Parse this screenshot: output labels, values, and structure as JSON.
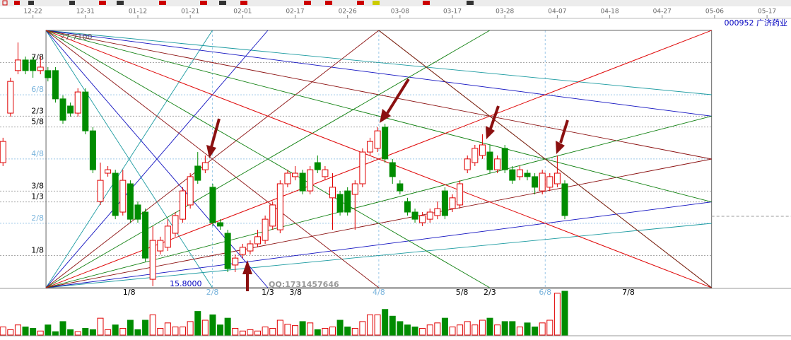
{
  "chart_data": {
    "type": "candlestick",
    "title": "000952 广济药业",
    "watermark": "QQ:1731457646",
    "xlim": [
      -0.4,
      105.2
    ],
    "xticks": [
      {
        "value": 4,
        "label": "12-22"
      },
      {
        "value": 11,
        "label": "12-31"
      },
      {
        "value": 18,
        "label": "01-12"
      },
      {
        "value": 25,
        "label": "01-21"
      },
      {
        "value": 32,
        "label": "02-01"
      },
      {
        "value": 39,
        "label": "02-17"
      },
      {
        "value": 46,
        "label": "02-26"
      },
      {
        "value": 53,
        "label": "03-08"
      },
      {
        "value": 60,
        "label": "03-17"
      },
      {
        "value": 67,
        "label": "03-28"
      },
      {
        "value": 74,
        "label": "04-07"
      },
      {
        "value": 81,
        "label": "04-18"
      },
      {
        "value": 88,
        "label": "04-27"
      },
      {
        "value": 95,
        "label": "05-06"
      },
      {
        "value": 102,
        "label": "05-17"
      }
    ],
    "ylim": [
      15.8,
      27.71
    ],
    "yticks": [
      {
        "value": 26.22,
        "label": "7/8"
      },
      {
        "value": 24.73,
        "label": "6/8"
      },
      {
        "value": 23.74,
        "label": "2/3"
      },
      {
        "value": 23.24,
        "label": "5/8"
      },
      {
        "value": 21.76,
        "label": "4/8"
      },
      {
        "value": 20.27,
        "label": "3/8"
      },
      {
        "value": 19.77,
        "label": "1/3"
      },
      {
        "value": 18.78,
        "label": "2/8"
      },
      {
        "value": 17.29,
        "label": "1/8"
      }
    ],
    "range_labels": [
      {
        "value": 27.71,
        "label": "27.7100"
      },
      {
        "value": 15.8,
        "label": "15.8000"
      }
    ],
    "gann_xlim": [
      5.74,
      94.6
    ],
    "time_fractions": [
      {
        "value": 0.125,
        "label": "1/8"
      },
      {
        "value": 0.25,
        "label": "2/8"
      },
      {
        "value": 0.3333,
        "label": "1/3"
      },
      {
        "value": 0.375,
        "label": "3/8"
      },
      {
        "value": 0.5,
        "label": "4/8"
      },
      {
        "value": 0.625,
        "label": "5/8"
      },
      {
        "value": 0.6667,
        "label": "2/3"
      },
      {
        "value": 0.75,
        "label": "6/8"
      },
      {
        "value": 0.875,
        "label": "7/8"
      }
    ],
    "up_color": "#e00000",
    "down_color": "#008c00",
    "open": [
      21.59,
      23.88,
      25.85,
      26.34,
      26.34,
      25.85,
      25.85,
      25.85,
      24.54,
      24.21,
      23.88,
      24.86,
      23.06,
      19.79,
      21.1,
      21.1,
      19.3,
      20.61,
      19.63,
      19.3,
      16.19,
      17.5,
      17.67,
      18.32,
      18.97,
      19.63,
      21.43,
      21.26,
      20.45,
      18.81,
      18.32,
      16.85,
      17.34,
      17.5,
      17.83,
      17.99,
      18.65,
      18.48,
      20.61,
      20.94,
      21.1,
      20.28,
      21.59,
      20.94,
      19.96,
      20.12,
      20.28,
      20.12,
      20.61,
      22.08,
      22.25,
      23.23,
      21.59,
      20.61,
      19.79,
      19.3,
      18.81,
      18.97,
      19.14,
      20.28,
      19.46,
      19.63,
      21.26,
      21.59,
      21.92,
      22.08,
      21.26,
      22.25,
      21.26,
      20.94,
      21.1,
      20.94,
      20.28,
      20.45,
      20.61,
      20.61
    ],
    "high": [
      22.74,
      25.52,
      27.15,
      26.5,
      26.5,
      26.5,
      26.01,
      26.01,
      24.7,
      24.37,
      25.03,
      25.03,
      23.23,
      21.59,
      21.43,
      21.26,
      21.26,
      20.77,
      19.79,
      19.46,
      18.65,
      18.16,
      18.97,
      19.3,
      20.45,
      21.1,
      22.08,
      21.92,
      20.61,
      18.97,
      18.48,
      17.34,
      17.83,
      17.99,
      18.48,
      19.14,
      19.79,
      20.77,
      21.26,
      21.43,
      21.26,
      21.43,
      21.92,
      21.43,
      21.1,
      20.28,
      20.45,
      20.77,
      22.25,
      22.74,
      23.23,
      23.39,
      21.76,
      20.77,
      19.96,
      19.46,
      19.3,
      19.46,
      19.79,
      20.45,
      20.12,
      20.77,
      21.92,
      22.41,
      22.9,
      22.41,
      21.92,
      22.41,
      21.43,
      21.43,
      21.26,
      21.1,
      21.26,
      21.1,
      21.92,
      20.77
    ],
    "low": [
      21.43,
      23.72,
      25.68,
      25.68,
      25.52,
      25.68,
      25.35,
      24.37,
      23.39,
      23.72,
      23.72,
      22.9,
      21.1,
      19.63,
      20.94,
      18.97,
      19.14,
      18.81,
      18.81,
      17.01,
      15.87,
      17.34,
      17.5,
      18.16,
      18.81,
      19.46,
      20.61,
      21.1,
      18.65,
      18.48,
      16.52,
      16.52,
      17.17,
      17.34,
      17.67,
      17.83,
      18.48,
      18.32,
      20.45,
      20.77,
      20.12,
      20.12,
      21.1,
      20.77,
      18.48,
      19.14,
      19.14,
      18.48,
      20.45,
      21.92,
      22.08,
      21.59,
      20.61,
      20.12,
      19.14,
      18.81,
      18.65,
      18.81,
      18.97,
      18.97,
      19.3,
      19.46,
      21.1,
      21.43,
      21.76,
      21.1,
      21.1,
      21.1,
      20.61,
      20.77,
      20.77,
      20.12,
      20.12,
      20.28,
      20.45,
      18.97
    ],
    "close": [
      22.57,
      25.35,
      26.34,
      25.85,
      25.85,
      26.01,
      25.52,
      24.54,
      23.55,
      23.88,
      24.86,
      23.06,
      21.26,
      20.77,
      21.26,
      19.14,
      20.77,
      18.97,
      18.97,
      17.17,
      17.99,
      17.99,
      18.65,
      19.14,
      20.28,
      20.94,
      20.77,
      21.59,
      18.81,
      18.65,
      16.68,
      17.17,
      17.67,
      17.83,
      18.16,
      18.97,
      19.63,
      20.61,
      21.1,
      21.1,
      20.28,
      21.26,
      21.26,
      21.26,
      20.45,
      19.3,
      19.3,
      20.61,
      22.08,
      22.57,
      23.06,
      21.76,
      20.94,
      20.28,
      19.3,
      18.97,
      19.14,
      19.3,
      19.46,
      19.14,
      19.96,
      20.61,
      21.76,
      22.25,
      22.41,
      21.26,
      21.76,
      21.26,
      20.77,
      21.26,
      20.94,
      20.45,
      21.1,
      20.94,
      21.1,
      19.14
    ],
    "volume": [
      12,
      8,
      15,
      12,
      10,
      6,
      15,
      5,
      20,
      8,
      5,
      10,
      8,
      25,
      8,
      15,
      10,
      22,
      8,
      22,
      30,
      10,
      18,
      12,
      12,
      20,
      35,
      22,
      30,
      15,
      25,
      10,
      6,
      8,
      6,
      12,
      10,
      22,
      16,
      14,
      20,
      18,
      8,
      10,
      12,
      22,
      12,
      10,
      20,
      30,
      30,
      38,
      28,
      20,
      15,
      12,
      10,
      15,
      18,
      25,
      12,
      15,
      20,
      15,
      22,
      25,
      15,
      20,
      20,
      12,
      18,
      12,
      18,
      22,
      62,
      65
    ],
    "volume_lim": [
      0,
      65
    ]
  }
}
